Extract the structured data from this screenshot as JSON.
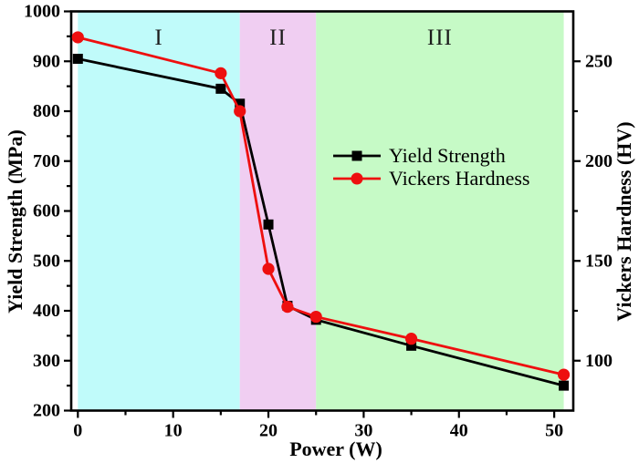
{
  "chart_data": {
    "type": "line",
    "title": "",
    "x": [
      0,
      15,
      17,
      20,
      22,
      25,
      35,
      51
    ],
    "series": [
      {
        "name": "Yield Strength",
        "axis": "left",
        "color": "#000000",
        "marker": "square",
        "values": [
          905,
          845,
          815,
          573,
          410,
          382,
          330,
          250
        ]
      },
      {
        "name": "Vickers Hardness",
        "axis": "right",
        "color": "#ee0f0f",
        "marker": "circle",
        "values": [
          262,
          244,
          225,
          146,
          127,
          122,
          111,
          93
        ]
      }
    ],
    "x_axis": {
      "label": "Power (W)",
      "range": [
        -0.7,
        52
      ],
      "major_ticks": [
        0,
        10,
        20,
        30,
        40,
        50
      ],
      "minor_ticks": [
        5,
        15,
        25,
        35,
        45
      ]
    },
    "y_left_axis": {
      "label": "Yield Strength (MPa)",
      "range": [
        200,
        1000
      ],
      "major_ticks": [
        200,
        300,
        400,
        500,
        600,
        700,
        800,
        900,
        1000
      ],
      "minor_ticks": [
        250,
        350,
        450,
        550,
        650,
        750,
        850,
        950
      ]
    },
    "y_right_axis": {
      "label": "Vickers Hardness (HV)",
      "range": [
        75,
        275
      ],
      "major_ticks": [
        100,
        150,
        200,
        250
      ],
      "minor_ticks": [
        125,
        175,
        225
      ]
    },
    "regions": [
      {
        "label": "I",
        "from": 0,
        "to": 17,
        "color": "#c0fbfa"
      },
      {
        "label": "II",
        "from": 17,
        "to": 25,
        "color": "#f0cef2"
      },
      {
        "label": "III",
        "from": 25,
        "to": 51,
        "color": "#c6fac6"
      }
    ],
    "legend": {
      "entries": [
        "Yield Strength",
        "Vickers Hardness"
      ],
      "position": "middle-right"
    },
    "grid": false,
    "frame_color": "#000000"
  }
}
